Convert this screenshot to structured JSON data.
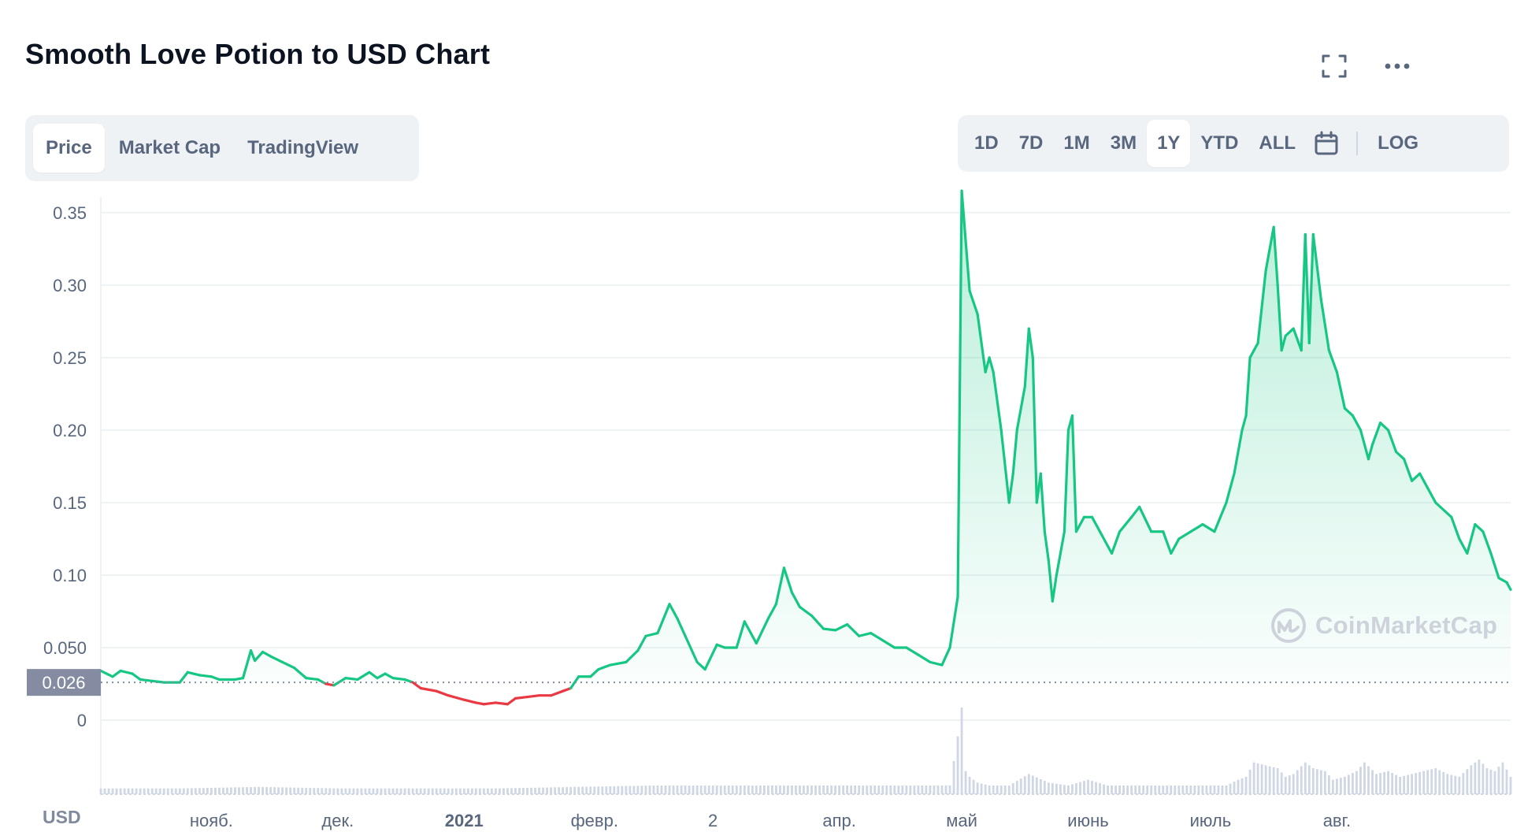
{
  "header": {
    "title": "Smooth Love Potion to USD Chart",
    "icons": [
      "fullscreen-icon",
      "more-icon"
    ]
  },
  "view_tabs": [
    {
      "label": "Price",
      "active": true
    },
    {
      "label": "Market Cap",
      "active": false
    },
    {
      "label": "TradingView",
      "active": false
    }
  ],
  "range_tabs": [
    {
      "label": "1D",
      "active": false
    },
    {
      "label": "7D",
      "active": false
    },
    {
      "label": "1M",
      "active": false
    },
    {
      "label": "3M",
      "active": false
    },
    {
      "label": "1Y",
      "active": true
    },
    {
      "label": "YTD",
      "active": false
    },
    {
      "label": "ALL",
      "active": false
    }
  ],
  "log_label": "LOG",
  "watermark": "CoinMarketCap",
  "currency_label": "USD",
  "colors": {
    "up": "#16c784",
    "down": "#ea3943",
    "grid": "#eff2f5",
    "axis_text": "#58667e",
    "badge": "#858ca2",
    "volume": "#cfd6e4"
  },
  "chart_data": {
    "type": "line",
    "xlabel": "",
    "ylabel": "",
    "ylim": [
      0,
      0.37
    ],
    "yticks": [
      0,
      0.05,
      0.1,
      0.15,
      0.2,
      0.25,
      0.3,
      0.35
    ],
    "ytick_labels": [
      "0",
      "0.050",
      "0.10",
      "0.15",
      "0.20",
      "0.25",
      "0.30",
      "0.35"
    ],
    "xrange": [
      0,
      357
    ],
    "xtick_labels": [
      {
        "label": "нояб.",
        "x": 28,
        "bold": false
      },
      {
        "label": "дек.",
        "x": 60,
        "bold": false
      },
      {
        "label": "2021",
        "x": 92,
        "bold": true
      },
      {
        "label": "февр.",
        "x": 125,
        "bold": false
      },
      {
        "label": "2",
        "x": 155,
        "bold": false
      },
      {
        "label": "апр.",
        "x": 187,
        "bold": false
      },
      {
        "label": "май",
        "x": 218,
        "bold": false
      },
      {
        "label": "июнь",
        "x": 250,
        "bold": false
      },
      {
        "label": "июль",
        "x": 281,
        "bold": false
      },
      {
        "label": "авг.",
        "x": 313,
        "bold": false
      }
    ],
    "reference_price": 0.026,
    "reference_label": "0.026",
    "grid": true,
    "series": [
      {
        "points": [
          [
            0,
            0.034
          ],
          [
            3,
            0.03
          ],
          [
            5,
            0.034
          ],
          [
            8,
            0.032
          ],
          [
            10,
            0.028
          ],
          [
            13,
            0.027
          ],
          [
            16,
            0.026
          ],
          [
            20,
            0.026
          ],
          [
            22,
            0.033
          ],
          [
            25,
            0.031
          ],
          [
            28,
            0.03
          ],
          [
            30,
            0.028
          ],
          [
            34,
            0.028
          ],
          [
            36,
            0.029
          ],
          [
            38,
            0.048
          ],
          [
            39,
            0.041
          ],
          [
            41,
            0.047
          ],
          [
            43,
            0.044
          ],
          [
            46,
            0.04
          ],
          [
            49,
            0.036
          ],
          [
            52,
            0.029
          ],
          [
            55,
            0.028
          ],
          [
            57,
            0.025
          ],
          [
            59,
            0.024
          ],
          [
            62,
            0.029
          ],
          [
            65,
            0.028
          ],
          [
            68,
            0.033
          ],
          [
            70,
            0.029
          ],
          [
            72,
            0.032
          ],
          [
            74,
            0.029
          ],
          [
            77,
            0.028
          ],
          [
            79,
            0.026
          ],
          [
            81,
            0.022
          ],
          [
            85,
            0.02
          ],
          [
            88,
            0.017
          ],
          [
            92,
            0.014
          ],
          [
            95,
            0.012
          ],
          [
            97,
            0.011
          ],
          [
            100,
            0.012
          ],
          [
            103,
            0.011
          ],
          [
            105,
            0.015
          ],
          [
            108,
            0.016
          ],
          [
            111,
            0.017
          ],
          [
            114,
            0.017
          ],
          [
            117,
            0.02
          ],
          [
            119,
            0.022
          ],
          [
            121,
            0.03
          ],
          [
            124,
            0.03
          ],
          [
            126,
            0.035
          ],
          [
            129,
            0.038
          ],
          [
            133,
            0.04
          ],
          [
            136,
            0.048
          ],
          [
            138,
            0.058
          ],
          [
            141,
            0.06
          ],
          [
            144,
            0.08
          ],
          [
            146,
            0.07
          ],
          [
            148,
            0.058
          ],
          [
            151,
            0.04
          ],
          [
            153,
            0.035
          ],
          [
            156,
            0.052
          ],
          [
            158,
            0.05
          ],
          [
            161,
            0.05
          ],
          [
            163,
            0.068
          ],
          [
            166,
            0.053
          ],
          [
            169,
            0.07
          ],
          [
            171,
            0.08
          ],
          [
            173,
            0.105
          ],
          [
            175,
            0.088
          ],
          [
            177,
            0.078
          ],
          [
            180,
            0.072
          ],
          [
            183,
            0.063
          ],
          [
            186,
            0.062
          ],
          [
            189,
            0.066
          ],
          [
            192,
            0.058
          ],
          [
            195,
            0.06
          ],
          [
            198,
            0.055
          ],
          [
            201,
            0.05
          ],
          [
            204,
            0.05
          ],
          [
            207,
            0.045
          ],
          [
            210,
            0.04
          ],
          [
            213,
            0.038
          ],
          [
            215,
            0.05
          ],
          [
            217,
            0.085
          ],
          [
            218,
            0.365
          ],
          [
            220,
            0.296
          ],
          [
            222,
            0.28
          ],
          [
            224,
            0.24
          ],
          [
            225,
            0.25
          ],
          [
            226,
            0.24
          ],
          [
            228,
            0.2
          ],
          [
            230,
            0.15
          ],
          [
            231,
            0.17
          ],
          [
            232,
            0.2
          ],
          [
            234,
            0.23
          ],
          [
            235,
            0.27
          ],
          [
            236,
            0.25
          ],
          [
            237,
            0.15
          ],
          [
            238,
            0.17
          ],
          [
            239,
            0.13
          ],
          [
            240,
            0.11
          ],
          [
            241,
            0.082
          ],
          [
            242,
            0.1
          ],
          [
            244,
            0.13
          ],
          [
            245,
            0.2
          ],
          [
            246,
            0.21
          ],
          [
            247,
            0.13
          ],
          [
            249,
            0.14
          ],
          [
            251,
            0.14
          ],
          [
            253,
            0.13
          ],
          [
            256,
            0.115
          ],
          [
            258,
            0.13
          ],
          [
            261,
            0.14
          ],
          [
            263,
            0.147
          ],
          [
            266,
            0.13
          ],
          [
            269,
            0.13
          ],
          [
            271,
            0.115
          ],
          [
            273,
            0.125
          ],
          [
            276,
            0.13
          ],
          [
            279,
            0.135
          ],
          [
            282,
            0.13
          ],
          [
            285,
            0.15
          ],
          [
            287,
            0.17
          ],
          [
            289,
            0.2
          ],
          [
            290,
            0.21
          ],
          [
            291,
            0.25
          ],
          [
            293,
            0.26
          ],
          [
            295,
            0.31
          ],
          [
            297,
            0.34
          ],
          [
            298,
            0.3
          ],
          [
            299,
            0.255
          ],
          [
            300,
            0.265
          ],
          [
            302,
            0.27
          ],
          [
            304,
            0.255
          ],
          [
            305,
            0.335
          ],
          [
            306,
            0.26
          ],
          [
            307,
            0.335
          ],
          [
            309,
            0.29
          ],
          [
            311,
            0.255
          ],
          [
            313,
            0.24
          ],
          [
            315,
            0.215
          ],
          [
            317,
            0.21
          ],
          [
            319,
            0.2
          ],
          [
            321,
            0.18
          ],
          [
            322,
            0.19
          ],
          [
            324,
            0.205
          ],
          [
            326,
            0.2
          ],
          [
            328,
            0.185
          ],
          [
            330,
            0.18
          ],
          [
            332,
            0.165
          ],
          [
            334,
            0.17
          ],
          [
            336,
            0.16
          ],
          [
            338,
            0.15
          ],
          [
            340,
            0.145
          ],
          [
            342,
            0.14
          ],
          [
            344,
            0.125
          ],
          [
            346,
            0.115
          ],
          [
            348,
            0.135
          ],
          [
            350,
            0.13
          ],
          [
            352,
            0.115
          ],
          [
            354,
            0.098
          ],
          [
            356,
            0.095
          ],
          [
            357,
            0.09
          ]
        ],
        "volume": [
          [
            0,
            2
          ],
          [
            20,
            2
          ],
          [
            40,
            2.5
          ],
          [
            60,
            2
          ],
          [
            80,
            2
          ],
          [
            100,
            2
          ],
          [
            120,
            2.5
          ],
          [
            140,
            3
          ],
          [
            160,
            3
          ],
          [
            180,
            3
          ],
          [
            200,
            3
          ],
          [
            215,
            3
          ],
          [
            217,
            20
          ],
          [
            218,
            30
          ],
          [
            219,
            8
          ],
          [
            220,
            6
          ],
          [
            222,
            4
          ],
          [
            225,
            3
          ],
          [
            230,
            3
          ],
          [
            235,
            7
          ],
          [
            240,
            4
          ],
          [
            245,
            3
          ],
          [
            250,
            5
          ],
          [
            255,
            3
          ],
          [
            260,
            3
          ],
          [
            265,
            3
          ],
          [
            270,
            3
          ],
          [
            275,
            3
          ],
          [
            280,
            3
          ],
          [
            285,
            3
          ],
          [
            288,
            5
          ],
          [
            290,
            6
          ],
          [
            292,
            11
          ],
          [
            295,
            10
          ],
          [
            298,
            9
          ],
          [
            300,
            6
          ],
          [
            302,
            7
          ],
          [
            305,
            11
          ],
          [
            307,
            9
          ],
          [
            310,
            8
          ],
          [
            312,
            5
          ],
          [
            315,
            6
          ],
          [
            318,
            8
          ],
          [
            320,
            11
          ],
          [
            323,
            7
          ],
          [
            326,
            8
          ],
          [
            329,
            6
          ],
          [
            332,
            7
          ],
          [
            335,
            8
          ],
          [
            338,
            9
          ],
          [
            341,
            7
          ],
          [
            344,
            6
          ],
          [
            347,
            10
          ],
          [
            349,
            12
          ],
          [
            351,
            9
          ],
          [
            353,
            8
          ],
          [
            355,
            11
          ],
          [
            357,
            6
          ]
        ]
      }
    ]
  }
}
